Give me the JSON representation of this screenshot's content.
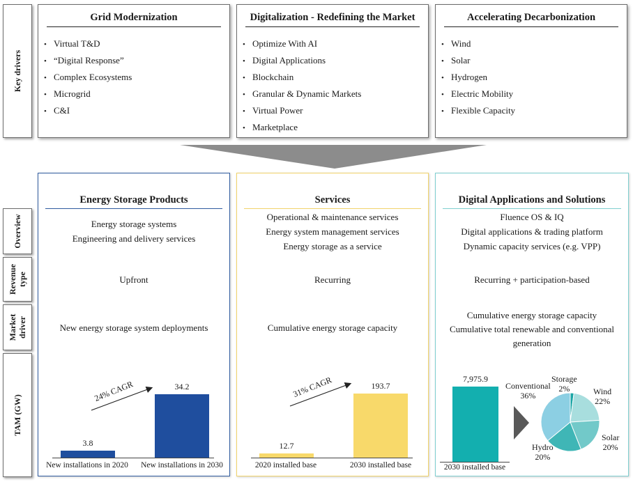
{
  "side_labels": {
    "key_drivers": "Key drivers",
    "overview": "Overview",
    "revenue_type": [
      "Revenue",
      "type"
    ],
    "market_driver": [
      "Market",
      "driver"
    ],
    "tam": "TAM (GW)"
  },
  "drivers": [
    {
      "title": "Grid Modernization",
      "items": [
        "Virtual T&D",
        "“Digital Response”",
        "Complex Ecosystems",
        "Microgrid",
        "C&I"
      ]
    },
    {
      "title": "Digitalization - Redefining the Market",
      "items": [
        "Optimize With AI",
        "Digital Applications",
        "Blockchain",
        "Granular & Dynamic Markets",
        "Virtual Power",
        "Marketplace"
      ]
    },
    {
      "title": "Accelerating Decarbonization",
      "items": [
        "Wind",
        "Solar",
        "Hydrogen",
        "Electric Mobility",
        "Flexible Capacity"
      ]
    }
  ],
  "columns": [
    {
      "title": "Energy Storage Products",
      "overview": [
        "Energy storage systems",
        "Engineering and delivery services"
      ],
      "revenue_type": "Upfront",
      "market_driver": [
        "New energy storage system deployments"
      ]
    },
    {
      "title": "Services",
      "overview": [
        "Operational & maintenance services",
        "Energy system management services",
        "Energy storage as a service"
      ],
      "revenue_type": "Recurring",
      "market_driver": [
        "Cumulative energy storage capacity"
      ]
    },
    {
      "title": "Digital Applications and Solutions",
      "overview": [
        "Fluence OS & IQ",
        "Digital applications & trading platform",
        "Dynamic capacity services (e.g. VPP)"
      ],
      "revenue_type": "Recurring + participation-based",
      "market_driver": [
        "Cumulative energy storage capacity",
        "Cumulative total renewable and conventional",
        "generation"
      ]
    }
  ],
  "colors": {
    "products": "#1f4e9e",
    "services": "#f8d96a",
    "services_border": "#f1d36a",
    "digital": "#13afaf",
    "digital_border": "#7fcfd0",
    "products_border": "#2e5a9e",
    "funnel": "#8c8c8c"
  },
  "chart_data": [
    {
      "type": "bar",
      "categories": [
        "New installations in 2020",
        "New installations in 2030"
      ],
      "values": [
        3.8,
        34.2
      ],
      "value_labels": [
        "3.8",
        "34.2"
      ],
      "annotation": "24% CAGR",
      "ylim": [
        0,
        40
      ]
    },
    {
      "type": "bar",
      "categories": [
        "2020 installed base",
        "2030 installed base"
      ],
      "values": [
        12.7,
        193.7
      ],
      "value_labels": [
        "12.7",
        "193.7"
      ],
      "annotation": "31% CAGR",
      "ylim": [
        0,
        220
      ]
    },
    {
      "type": "bar",
      "categories": [
        "2030 installed base"
      ],
      "values": [
        7975.9
      ],
      "value_labels": [
        "7,975.9"
      ],
      "ylim": [
        0,
        9000
      ]
    },
    {
      "type": "pie",
      "slices": [
        {
          "label": "Storage",
          "pct": 2,
          "pct_label": "2%",
          "color": "#1ba6a6"
        },
        {
          "label": "Wind",
          "pct": 22,
          "pct_label": "22%",
          "color": "#a8dede"
        },
        {
          "label": "Solar",
          "pct": 20,
          "pct_label": "20%",
          "color": "#72c9c9"
        },
        {
          "label": "Hydro",
          "pct": 20,
          "pct_label": "20%",
          "color": "#3fb6b6"
        },
        {
          "label": "Conventional",
          "pct": 36,
          "pct_label": "36%",
          "color": "#8ccfe3"
        }
      ]
    }
  ]
}
